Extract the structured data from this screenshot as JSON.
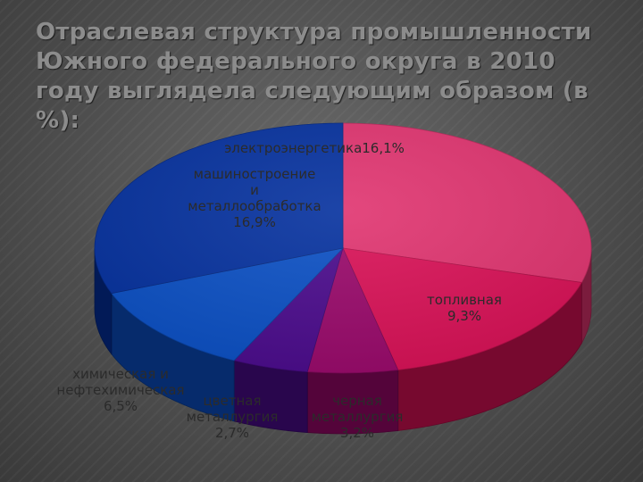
{
  "title": "Отраслевая структура промышленности Южного федерального округа в 2010 году выглядела следующим образом (в %):",
  "chart_data": {
    "type": "pie",
    "title": "",
    "slices": [
      {
        "name": "электроэнергетика",
        "value": 16.1,
        "label": "электроэнергетика16,1%",
        "color": "#e0336f"
      },
      {
        "name": "топливная",
        "value": 9.3,
        "label": "топливная\n9,3%",
        "color": "#d91056"
      },
      {
        "name": "черная металлургия",
        "value": 3.2,
        "label": "черная\nметаллургия\n3,2%",
        "color": "#99086a"
      },
      {
        "name": "цветная металлургия",
        "value": 2.7,
        "label": "цветная\nметаллургия\n2,7%",
        "color": "#4a0a8c"
      },
      {
        "name": "химическая и нефтехимическая",
        "value": 6.5,
        "label": "химическая и\nнефтехимическая\n6,5%",
        "color": "#0a4fc4"
      },
      {
        "name": "машиностроение и металлообработка",
        "value": 16.9,
        "label": "машиностроение\nи\nметаллообработка\n16,9%",
        "color": "#04309e"
      }
    ],
    "start": "top",
    "direction": "clockwise",
    "legend": "none",
    "style": "3d-extruded"
  }
}
